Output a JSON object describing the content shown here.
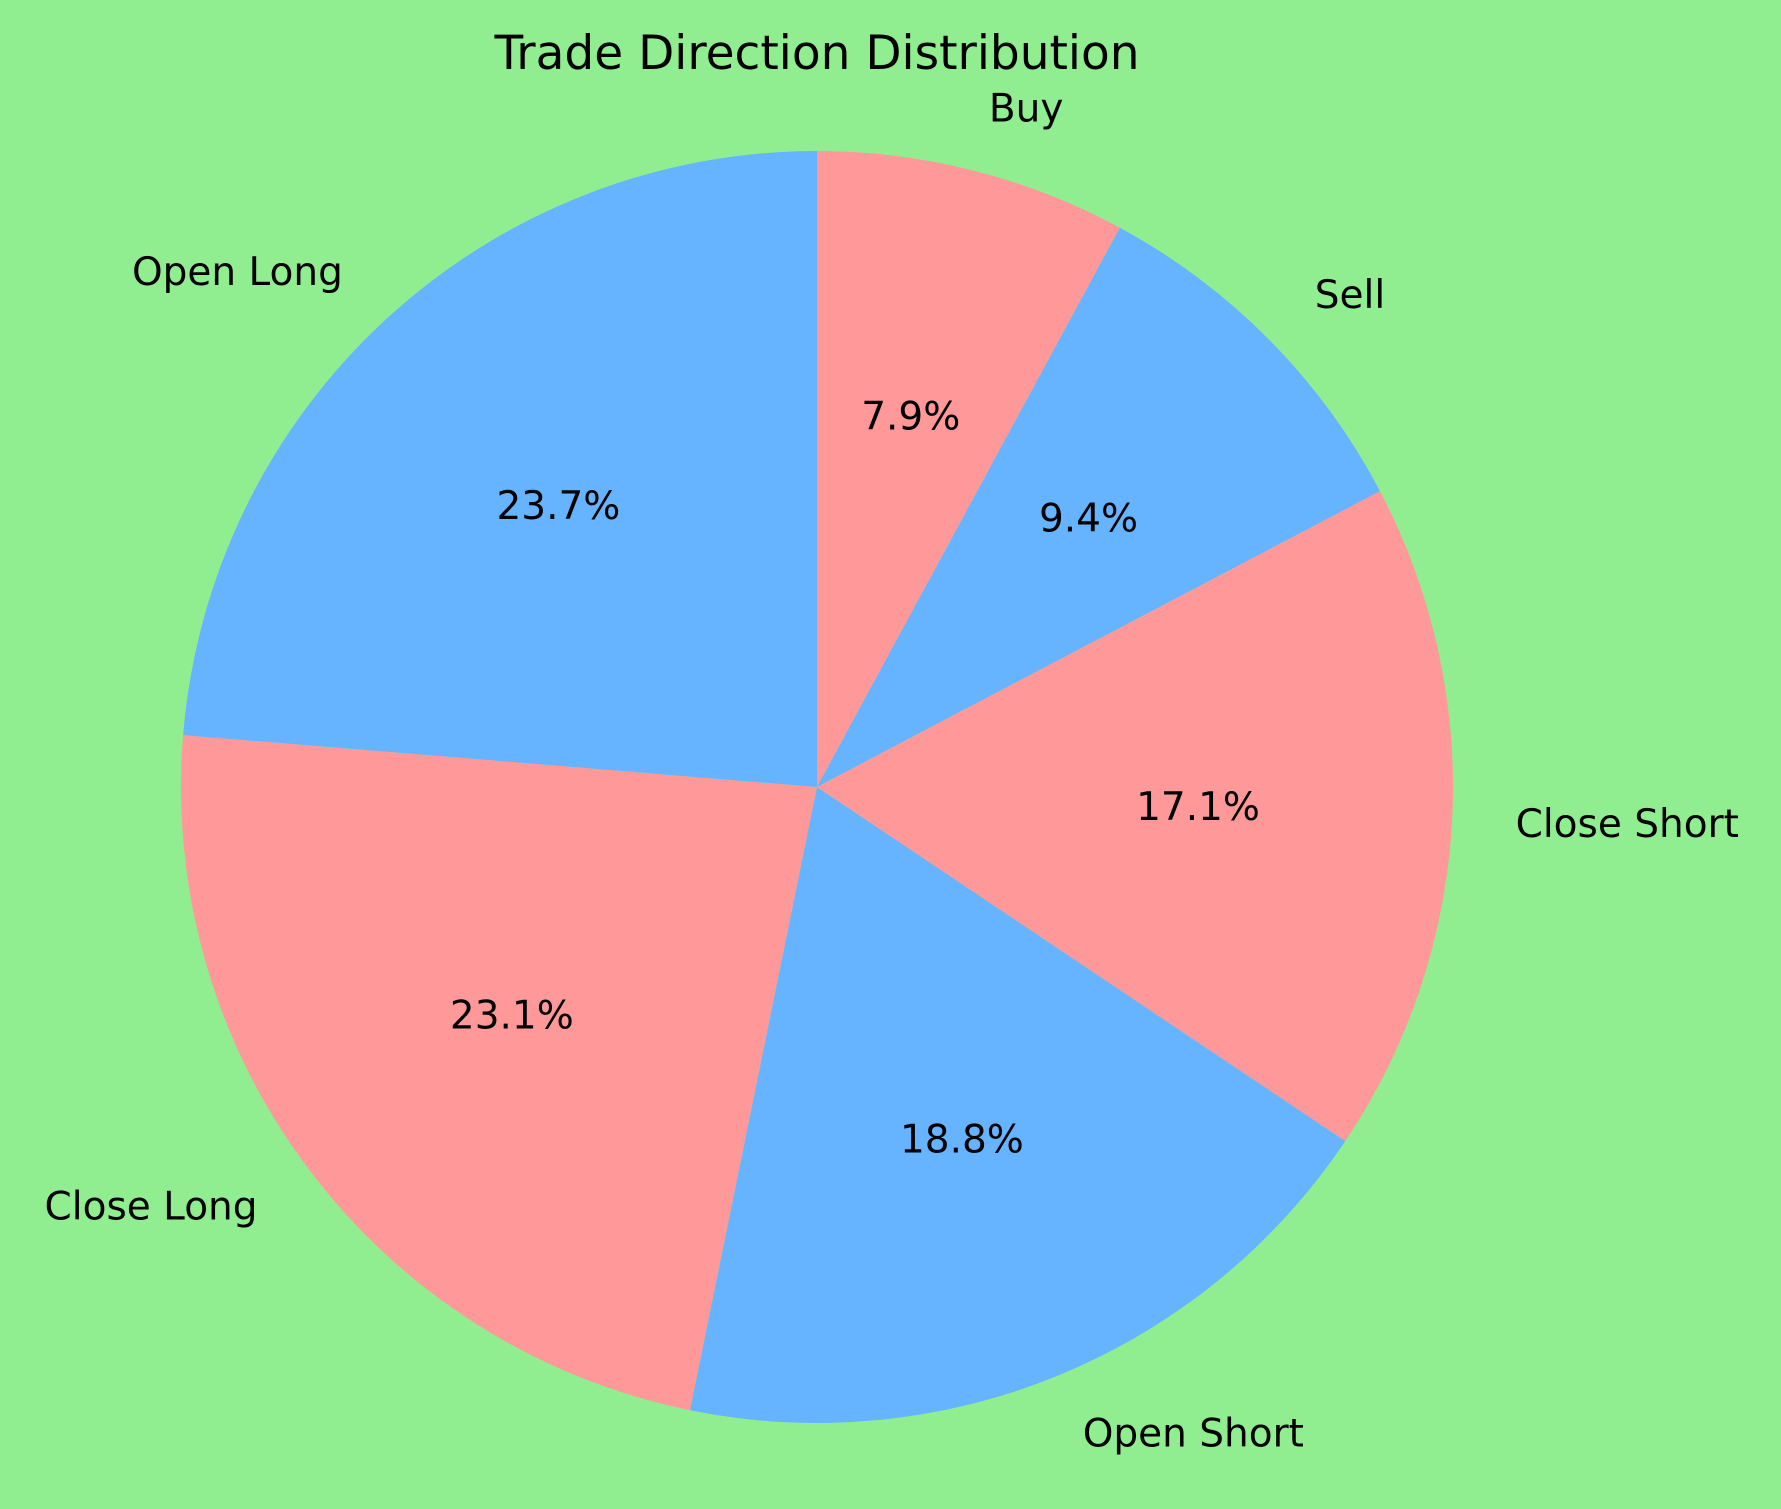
{
  "colors": {
    "background": "#90EE90",
    "slice_a": "#FF9999",
    "slice_b": "#66B3FF"
  },
  "chart_data": {
    "type": "pie",
    "title": "Trade Direction Distribution",
    "start_angle_deg": 90,
    "direction": "clockwise",
    "slices": [
      {
        "label": "Buy",
        "value": 7.9,
        "pct_label": "7.9%",
        "color": "#FF9999"
      },
      {
        "label": "Sell",
        "value": 9.4,
        "pct_label": "9.4%",
        "color": "#66B3FF"
      },
      {
        "label": "Close Short",
        "value": 17.1,
        "pct_label": "17.1%",
        "color": "#FF9999"
      },
      {
        "label": "Open Short",
        "value": 18.8,
        "pct_label": "18.8%",
        "color": "#66B3FF"
      },
      {
        "label": "Close Long",
        "value": 23.1,
        "pct_label": "23.1%",
        "color": "#FF9999"
      },
      {
        "label": "Open Long",
        "value": 23.7,
        "pct_label": "23.7%",
        "color": "#66B3FF"
      }
    ]
  }
}
